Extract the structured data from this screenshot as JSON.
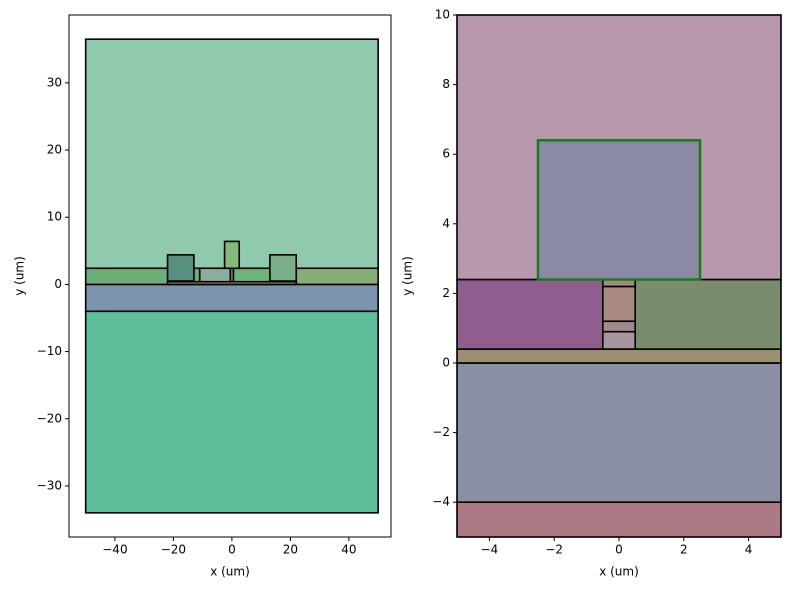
{
  "chart_data": [
    {
      "type": "rect",
      "xlabel": "x (um)",
      "ylabel": "y (um)",
      "xlim": [
        -55.7,
        54.4
      ],
      "ylim": [
        -37.6,
        40.1
      ],
      "xticks": [
        {
          "value": -40,
          "label": "−40"
        },
        {
          "value": -20,
          "label": "−20"
        },
        0,
        20,
        40
      ],
      "yticks": [
        {
          "value": -30,
          "label": "−30"
        },
        {
          "value": -20,
          "label": "−20"
        },
        {
          "value": -10,
          "label": "−10"
        },
        0,
        10,
        20,
        30
      ],
      "shapes": [
        {
          "x": [
            -50,
            50
          ],
          "y": [
            -34,
            -4
          ],
          "color": "#5cbf9a"
        },
        {
          "x": [
            -50,
            50
          ],
          "y": [
            -4,
            0
          ],
          "color": "#7a95ad"
        },
        {
          "x": [
            -50,
            50
          ],
          "y": [
            2.4,
            36.5
          ],
          "color": "#8fcaae"
        },
        {
          "x": [
            -50,
            -11
          ],
          "y": [
            0,
            2.4
          ],
          "color": "#6aaf78"
        },
        {
          "x": [
            -11,
            -0.5
          ],
          "y": [
            0,
            2.4
          ],
          "color": "#8aada0"
        },
        {
          "x": [
            0.5,
            22
          ],
          "y": [
            0,
            2.4
          ],
          "color": "#6db57a"
        },
        {
          "x": [
            22,
            50
          ],
          "y": [
            0,
            2.4
          ],
          "color": "#86ae78"
        },
        {
          "x": [
            -22,
            22
          ],
          "y": [
            0,
            0.4
          ],
          "color": "#9a9070"
        },
        {
          "x": [
            -0.5,
            0.5
          ],
          "y": [
            0.4,
            2.4
          ],
          "color": "#a88c8c"
        },
        {
          "x": [
            -22,
            -13
          ],
          "y": [
            0.5,
            4.4
          ],
          "color": "#5a9080"
        },
        {
          "x": [
            13,
            22
          ],
          "y": [
            0.5,
            4.4
          ],
          "color": "#7aae86"
        },
        {
          "x": [
            -2.5,
            2.5
          ],
          "y": [
            2.4,
            6.4
          ],
          "color": "#86b87a"
        }
      ]
    },
    {
      "type": "rect",
      "xlabel": "x (um)",
      "ylabel": "y (um)",
      "xlim": [
        -5,
        5
      ],
      "ylim": [
        -5,
        10
      ],
      "xticks": [
        {
          "value": -4,
          "label": "−4"
        },
        {
          "value": -2,
          "label": "−2"
        },
        0,
        2,
        4
      ],
      "yticks": [
        {
          "value": -4,
          "label": "−4"
        },
        {
          "value": -2,
          "label": "−2"
        },
        0,
        2,
        4,
        6,
        8,
        10
      ],
      "shapes": [
        {
          "x": [
            -5,
            5
          ],
          "y": [
            -5,
            -4
          ],
          "color": "#ab7a84"
        },
        {
          "x": [
            -5,
            5
          ],
          "y": [
            -4,
            0
          ],
          "color": "#8a8fa6"
        },
        {
          "x": [
            -5,
            5
          ],
          "y": [
            0,
            0.4
          ],
          "color": "#9a9070"
        },
        {
          "x": [
            -5,
            -0.5
          ],
          "y": [
            0.4,
            2.4
          ],
          "color": "#905e8e"
        },
        {
          "x": [
            0.5,
            5
          ],
          "y": [
            0.4,
            2.4
          ],
          "color": "#7a8c6e"
        },
        {
          "x": [
            -0.5,
            0.5
          ],
          "y": [
            0.4,
            0.9
          ],
          "color": "#a8949e"
        },
        {
          "x": [
            -0.5,
            0.5
          ],
          "y": [
            0.9,
            1.2
          ],
          "color": "#a08a8a"
        },
        {
          "x": [
            -0.5,
            0.5
          ],
          "y": [
            1.2,
            2.2
          ],
          "color": "#a88a82"
        },
        {
          "x": [
            -0.5,
            0.5
          ],
          "y": [
            2.2,
            2.4
          ],
          "color": "#a08a8a"
        },
        {
          "x": [
            -5,
            5
          ],
          "y": [
            2.4,
            10
          ],
          "color": "#b898ac"
        },
        {
          "x": [
            -2.5,
            2.5
          ],
          "y": [
            2.4,
            6.4
          ],
          "color": "#8a8aa6",
          "edgecolor": "#1a7a1a"
        }
      ]
    }
  ]
}
